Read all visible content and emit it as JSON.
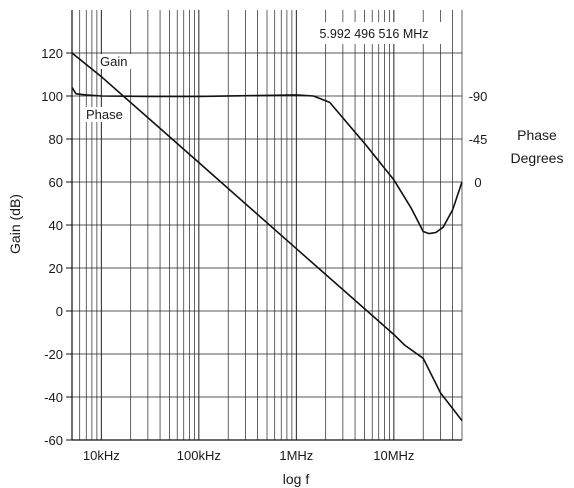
{
  "chart_data": {
    "type": "line",
    "title": "",
    "xlabel": "log f",
    "ylabel": "Gain (dB)",
    "y2label_lines": [
      "Phase",
      "Degrees"
    ],
    "x_scale": "log",
    "x_range_hz": [
      5000,
      50000000
    ],
    "ylim": [
      -60,
      140
    ],
    "y_ticks": [
      120,
      100,
      80,
      60,
      40,
      20,
      0,
      -20,
      -40,
      -60
    ],
    "x_tick_labels": [
      {
        "f": 10000,
        "label": "10kHz"
      },
      {
        "f": 100000,
        "label": "100kHz"
      },
      {
        "f": 1000000,
        "label": "1MHz"
      },
      {
        "f": 10000000,
        "label": "10MHz"
      }
    ],
    "phase_ticks": [
      {
        "gain_db": 100,
        "label": "-90"
      },
      {
        "gain_db": 80,
        "label": "-45"
      },
      {
        "gain_db": 60,
        "label": "0"
      }
    ],
    "annotation": "5.992 496 516 MHz",
    "grid": true,
    "series": [
      {
        "name": "Gain",
        "x": [
          5000,
          10000,
          100000,
          1000000,
          10000000,
          13000000,
          20000000,
          30000000,
          50000000
        ],
        "y": [
          120,
          109,
          69,
          29,
          -11,
          -16,
          -22,
          -38,
          -51
        ]
      },
      {
        "name": "Phase",
        "x": [
          5000,
          5500,
          7000,
          10000,
          30000,
          100000,
          500000,
          1000000,
          1500000,
          2200000,
          5000000,
          10000000,
          15000000,
          20000000,
          23000000,
          27000000,
          32000000,
          40000000,
          50000000
        ],
        "y": [
          104,
          101,
          100.5,
          100,
          99.8,
          99.8,
          100.3,
          100.5,
          100,
          97,
          78,
          61,
          48,
          37,
          36,
          36.5,
          39,
          47,
          60
        ]
      }
    ]
  }
}
